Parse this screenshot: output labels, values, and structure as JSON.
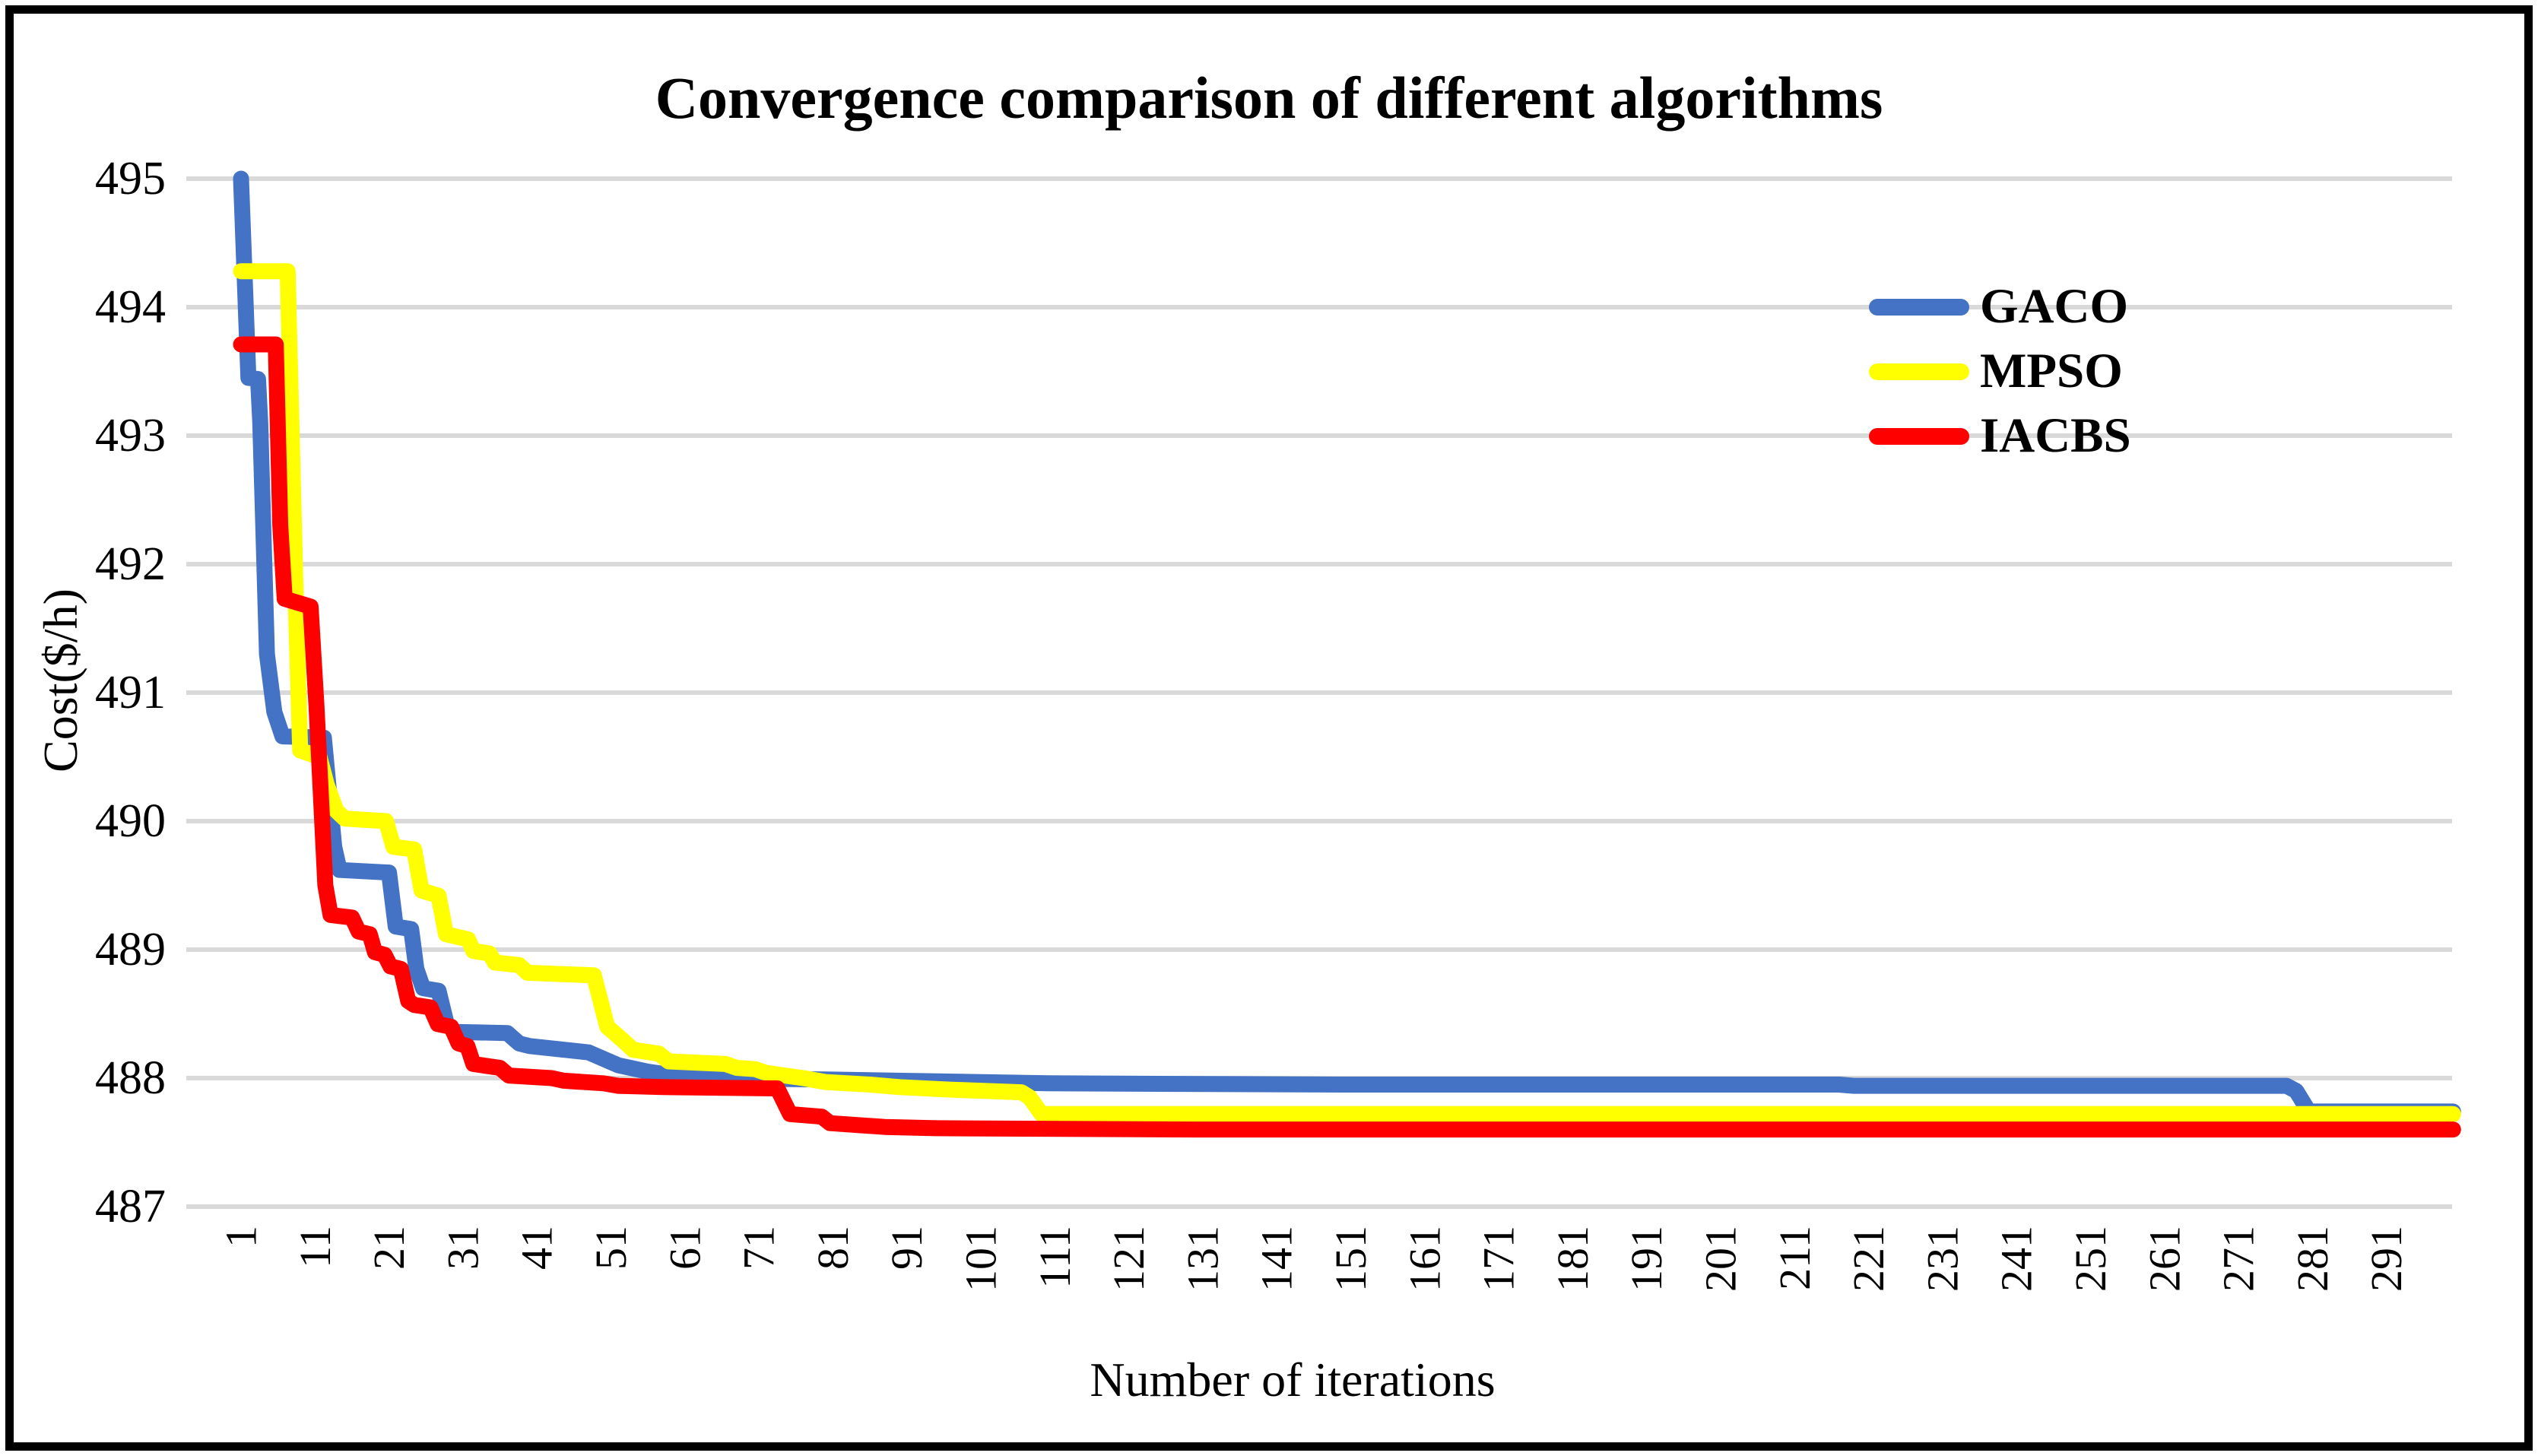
{
  "figure": {
    "title": "Convergence comparison of different algorithms",
    "y_axis_title": "Cost($/h)",
    "x_axis_title": "Number of iterations"
  },
  "legend": {
    "items": [
      {
        "label": "GACO",
        "color": "#4472C4"
      },
      {
        "label": "MPSO",
        "color": "#FFFF00"
      },
      {
        "label": "IACBS",
        "color": "#FF0000"
      }
    ]
  },
  "chart_data": {
    "type": "line",
    "title": "Convergence comparison of different algorithms",
    "xlabel": "Number of iterations",
    "ylabel": "Cost($/h)",
    "xlim": [
      1,
      300
    ],
    "ylim": [
      487,
      495
    ],
    "grid": true,
    "gridline_color": "#D9D9D9",
    "background": "#FFFFFF",
    "legend_position": "top-right-inside",
    "x_ticks": [
      1,
      11,
      21,
      31,
      41,
      51,
      61,
      71,
      81,
      91,
      101,
      111,
      121,
      131,
      141,
      151,
      161,
      171,
      181,
      191,
      201,
      211,
      221,
      231,
      241,
      251,
      261,
      271,
      281,
      291
    ],
    "y_ticks": [
      495,
      494,
      493,
      492,
      491,
      490,
      489,
      488,
      487
    ],
    "series": [
      {
        "name": "GACO",
        "color": "#4472C4",
        "points": [
          [
            1,
            495
          ],
          [
            2,
            493.45
          ],
          [
            3.3,
            493.44
          ],
          [
            3.6,
            493.1
          ],
          [
            4.5,
            491.3
          ],
          [
            5.5,
            490.85
          ],
          [
            6.6,
            490.66
          ],
          [
            12.2,
            490.65
          ],
          [
            13.6,
            489.8
          ],
          [
            14.3,
            489.62
          ],
          [
            21,
            489.6
          ],
          [
            21.9,
            489.18
          ],
          [
            24,
            489.16
          ],
          [
            24.7,
            488.85
          ],
          [
            25.6,
            488.7
          ],
          [
            27.7,
            488.68
          ],
          [
            28.8,
            488.42
          ],
          [
            30,
            488.36
          ],
          [
            37,
            488.35
          ],
          [
            38.6,
            488.27
          ],
          [
            40,
            488.25
          ],
          [
            48,
            488.2
          ],
          [
            52,
            488.1
          ],
          [
            56,
            488.05
          ],
          [
            62,
            488.0
          ],
          [
            80,
            487.99
          ],
          [
            110,
            487.96
          ],
          [
            150,
            487.95
          ],
          [
            217,
            487.95
          ],
          [
            219,
            487.94
          ],
          [
            277.5,
            487.94
          ],
          [
            278.8,
            487.9
          ],
          [
            280.5,
            487.74
          ],
          [
            300,
            487.74
          ]
        ]
      },
      {
        "name": "MPSO",
        "color": "#FFFF00",
        "points": [
          [
            1,
            494.28
          ],
          [
            7.3,
            494.28
          ],
          [
            8.5,
            491.5
          ],
          [
            9,
            490.55
          ],
          [
            11.6,
            490.5
          ],
          [
            12.6,
            490.28
          ],
          [
            13.9,
            490.08
          ],
          [
            15,
            490.02
          ],
          [
            20.6,
            490.0
          ],
          [
            21.6,
            489.8
          ],
          [
            24.4,
            489.78
          ],
          [
            25.4,
            489.46
          ],
          [
            27.7,
            489.42
          ],
          [
            28.7,
            489.12
          ],
          [
            31.7,
            489.08
          ],
          [
            32.4,
            488.99
          ],
          [
            34.6,
            488.97
          ],
          [
            35.3,
            488.9
          ],
          [
            38.6,
            488.88
          ],
          [
            39.7,
            488.82
          ],
          [
            48.7,
            488.8
          ],
          [
            50.5,
            488.4
          ],
          [
            52.5,
            488.3
          ],
          [
            54,
            488.22
          ],
          [
            57.5,
            488.19
          ],
          [
            58.8,
            488.13
          ],
          [
            66.5,
            488.11
          ],
          [
            68,
            488.08
          ],
          [
            70.5,
            488.07
          ],
          [
            72,
            488.04
          ],
          [
            77,
            488.0
          ],
          [
            80,
            487.97
          ],
          [
            86,
            487.95
          ],
          [
            90,
            487.93
          ],
          [
            97,
            487.91
          ],
          [
            106.5,
            487.89
          ],
          [
            107.6,
            487.85
          ],
          [
            109.2,
            487.72
          ],
          [
            300,
            487.72
          ]
        ]
      },
      {
        "name": "IACBS",
        "color": "#FF0000",
        "points": [
          [
            1,
            493.71
          ],
          [
            5.7,
            493.71
          ],
          [
            6.3,
            492.3
          ],
          [
            6.9,
            491.73
          ],
          [
            10.4,
            491.67
          ],
          [
            11.2,
            490.9
          ],
          [
            12.4,
            489.5
          ],
          [
            13.1,
            489.27
          ],
          [
            16,
            489.25
          ],
          [
            16.9,
            489.14
          ],
          [
            18.4,
            489.12
          ],
          [
            19.1,
            488.98
          ],
          [
            20.4,
            488.96
          ],
          [
            21.2,
            488.87
          ],
          [
            22.6,
            488.85
          ],
          [
            23.6,
            488.6
          ],
          [
            24.4,
            488.57
          ],
          [
            26.6,
            488.55
          ],
          [
            27.6,
            488.42
          ],
          [
            29.4,
            488.4
          ],
          [
            30.4,
            488.27
          ],
          [
            31.6,
            488.25
          ],
          [
            32.4,
            488.11
          ],
          [
            36,
            488.08
          ],
          [
            37.2,
            488.02
          ],
          [
            43,
            488.0
          ],
          [
            44.6,
            487.98
          ],
          [
            50,
            487.96
          ],
          [
            52,
            487.94
          ],
          [
            58,
            487.93
          ],
          [
            73.5,
            487.92
          ],
          [
            75.2,
            487.72
          ],
          [
            79.5,
            487.7
          ],
          [
            80.6,
            487.65
          ],
          [
            88,
            487.62
          ],
          [
            95,
            487.61
          ],
          [
            130,
            487.6
          ],
          [
            300,
            487.6
          ]
        ]
      }
    ]
  }
}
